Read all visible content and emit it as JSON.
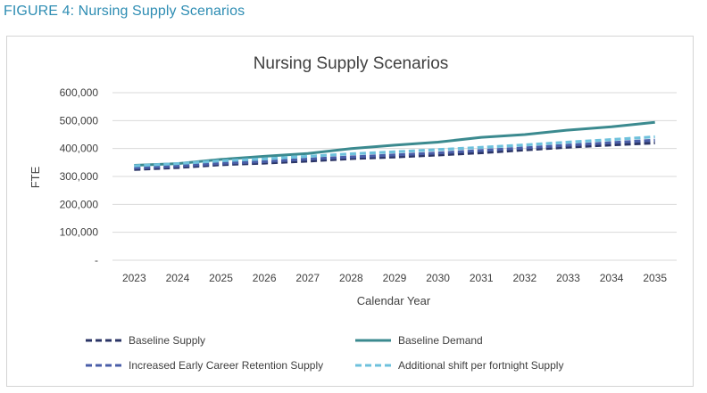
{
  "figure_caption": "FIGURE 4: Nursing Supply Scenarios",
  "chart_data": {
    "type": "line",
    "title": "Nursing Supply Scenarios",
    "xlabel": "Calendar Year",
    "ylabel": "FTE",
    "categories": [
      "2023",
      "2024",
      "2025",
      "2026",
      "2027",
      "2028",
      "2029",
      "2030",
      "2031",
      "2032",
      "2033",
      "2034",
      "2035"
    ],
    "ylim": [
      0,
      600000
    ],
    "yticks": [
      0,
      100000,
      200000,
      300000,
      400000,
      500000,
      600000
    ],
    "ytick_labels": [
      "-",
      "100,000",
      "200,000",
      "300,000",
      "400,000",
      "500,000",
      "600,000"
    ],
    "grid": true,
    "legend_position": "bottom",
    "series": [
      {
        "name": "Baseline Supply",
        "color": "#2b3566",
        "style": "dashed",
        "values": [
          325000,
          332000,
          342000,
          348000,
          355000,
          364000,
          370000,
          377000,
          385000,
          395000,
          405000,
          413000,
          420000
        ]
      },
      {
        "name": "Baseline Demand",
        "color": "#3b8a8f",
        "style": "solid",
        "values": [
          340000,
          346000,
          361000,
          372000,
          382000,
          400000,
          412000,
          423000,
          440000,
          450000,
          466000,
          478000,
          494000
        ]
      },
      {
        "name": "Increased Early Career Retention Supply",
        "color": "#4a5ea8",
        "style": "dashed",
        "values": [
          330000,
          337000,
          347000,
          353000,
          362000,
          370000,
          377000,
          384000,
          393000,
          402000,
          412000,
          421000,
          430000
        ]
      },
      {
        "name": "Additional shift per fortnight Supply",
        "color": "#6ec1dc",
        "style": "dashed",
        "values": [
          338000,
          346000,
          356000,
          363000,
          372000,
          381000,
          388000,
          396000,
          404000,
          413000,
          423000,
          432000,
          442000
        ]
      }
    ]
  }
}
